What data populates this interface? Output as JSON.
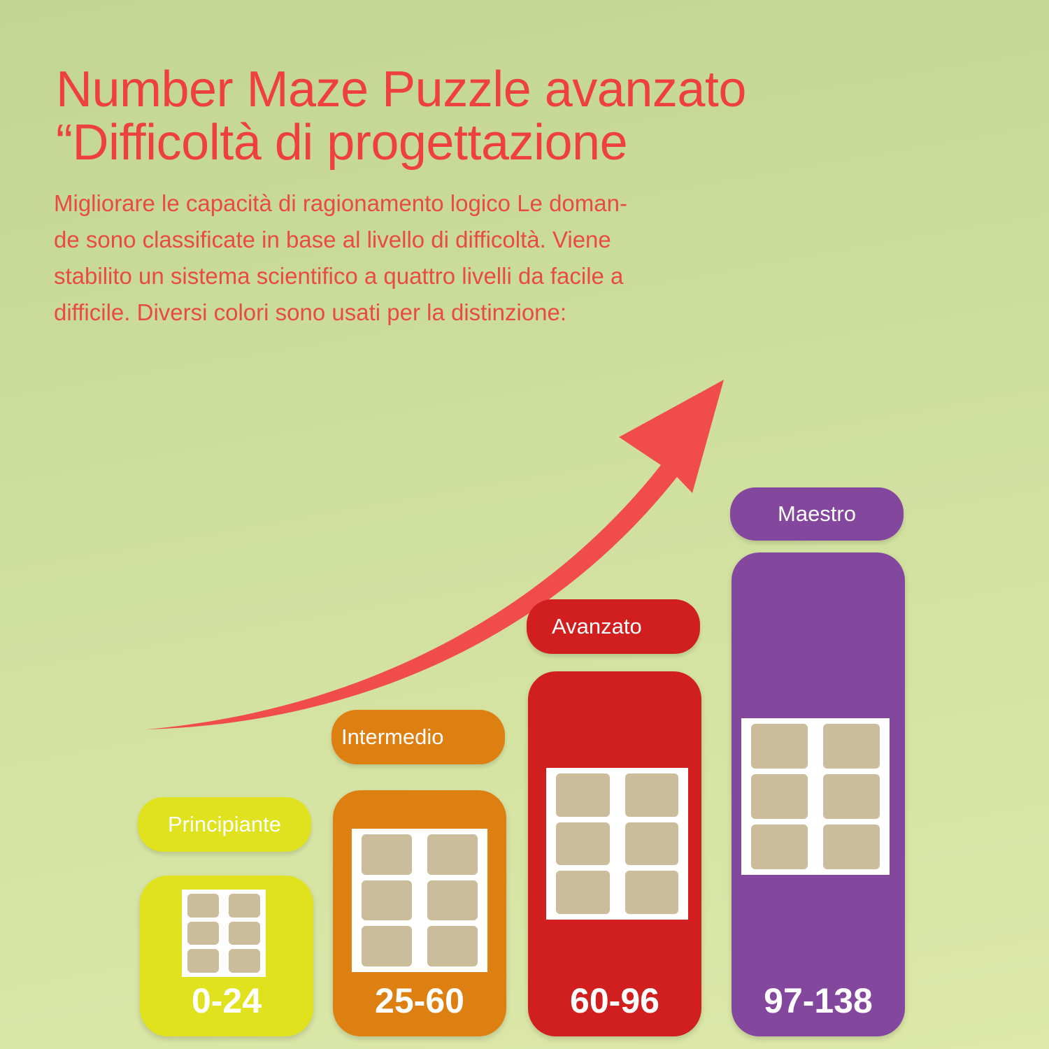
{
  "title": {
    "line1": "Number Maze Puzzle avanzato",
    "line2": "“Difficoltà di progettazione"
  },
  "description": [
    "Migliorare le capacità di ragionamento logico Le doman-",
    "de sono classificate in base al livello di difficoltà. Viene",
    "stabilito un sistema scientifico a quattro livelli da facile a",
    "difficile. Diversi colori sono usati per la distinzione:"
  ],
  "arrow_color": "#f04c4c",
  "levels": [
    {
      "label": "Principiante",
      "range": "0-24",
      "color": "#dfe21c"
    },
    {
      "label": "Intermedio",
      "range": "25-60",
      "color": "#de7f12"
    },
    {
      "label": "Avanzato",
      "range": "60-96",
      "color": "#d11f1f"
    },
    {
      "label": "Maestro",
      "range": "97-138",
      "color": "#84479e"
    }
  ]
}
